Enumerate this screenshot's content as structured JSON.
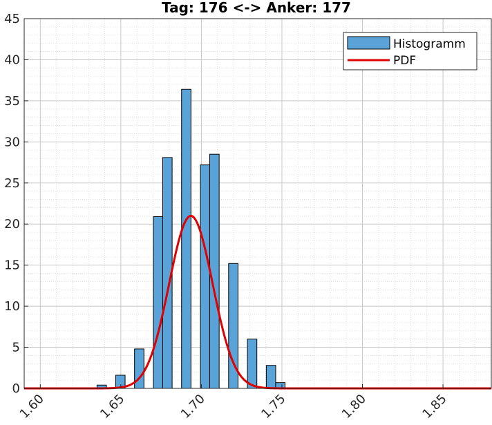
{
  "chart_data": {
    "type": "bar",
    "title": "Tag: 176 <-> Anker: 177",
    "xlabel": "",
    "ylabel": "",
    "xlim": [
      1.59,
      1.88
    ],
    "ylim": [
      0,
      45
    ],
    "x_ticks": [
      1.6,
      1.65,
      1.7,
      1.75,
      1.8,
      1.85
    ],
    "x_tick_labels": [
      "1.60",
      "1.65",
      "1.70",
      "1.75",
      "1.80",
      "1.85"
    ],
    "y_ticks": [
      0,
      5,
      10,
      15,
      20,
      25,
      30,
      35,
      40,
      45
    ],
    "y_tick_labels": [
      "0",
      "5",
      "10",
      "15",
      "20",
      "25",
      "30",
      "35",
      "40",
      "45"
    ],
    "grid": true,
    "minor_grid": true,
    "legend_position": "top-right",
    "histogram": {
      "name": "Histogramm",
      "color": "#5aa3d9",
      "bin_width": 0.00585,
      "bins": [
        {
          "left": 1.6352,
          "value": 0.4
        },
        {
          "left": 1.6468,
          "value": 1.6
        },
        {
          "left": 1.6585,
          "value": 4.8
        },
        {
          "left": 1.6702,
          "value": 20.9
        },
        {
          "left": 1.676,
          "value": 28.1
        },
        {
          "left": 1.6877,
          "value": 36.4
        },
        {
          "left": 1.6994,
          "value": 27.2
        },
        {
          "left": 1.7052,
          "value": 28.5
        },
        {
          "left": 1.7169,
          "value": 15.2
        },
        {
          "left": 1.7286,
          "value": 6.0
        },
        {
          "left": 1.7403,
          "value": 2.8
        },
        {
          "left": 1.7461,
          "value": 0.7
        }
      ]
    },
    "pdf": {
      "name": "PDF",
      "color": "#e00000",
      "distribution": "normal",
      "mean": 1.6935,
      "sigma": 0.0135,
      "peak": 21.0
    }
  }
}
